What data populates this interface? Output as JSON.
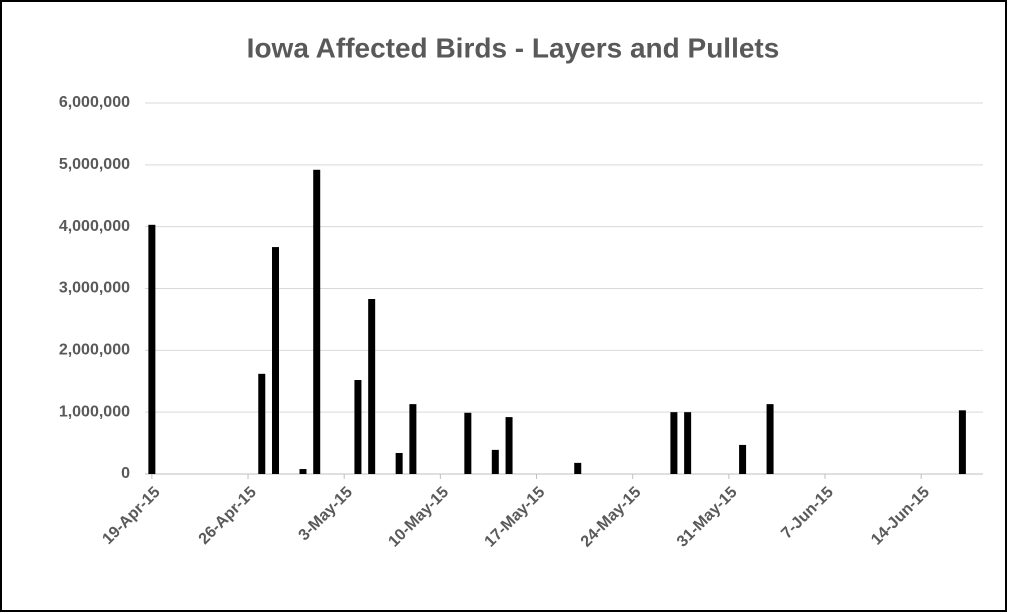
{
  "chart_data": {
    "type": "bar",
    "title": "Iowa Affected Birds - Layers and Pullets",
    "x": [
      "2015-04-19",
      "2015-04-27",
      "2015-04-28",
      "2015-04-30",
      "2015-05-01",
      "2015-05-04",
      "2015-05-05",
      "2015-05-07",
      "2015-05-08",
      "2015-05-12",
      "2015-05-14",
      "2015-05-15",
      "2015-05-20",
      "2015-05-27",
      "2015-05-28",
      "2015-06-01",
      "2015-06-03",
      "2015-06-17"
    ],
    "values": [
      4030000,
      1620000,
      3670000,
      80000,
      4920000,
      1520000,
      2830000,
      340000,
      1130000,
      990000,
      390000,
      920000,
      180000,
      1000000,
      1000000,
      470000,
      1130000,
      1030000
    ],
    "color": "#000000",
    "xlim": [
      "2015-04-19",
      "2015-06-18"
    ],
    "xticks": [
      {
        "value": "2015-04-19",
        "label": "19-Apr-15"
      },
      {
        "value": "2015-04-26",
        "label": "26-Apr-15"
      },
      {
        "value": "2015-05-03",
        "label": "3-May-15"
      },
      {
        "value": "2015-05-10",
        "label": "10-May-15"
      },
      {
        "value": "2015-05-17",
        "label": "17-May-15"
      },
      {
        "value": "2015-05-24",
        "label": "24-May-15"
      },
      {
        "value": "2015-05-31",
        "label": "31-May-15"
      },
      {
        "value": "2015-06-07",
        "label": "7-Jun-15"
      },
      {
        "value": "2015-06-14",
        "label": "14-Jun-15"
      }
    ],
    "ylim": [
      0,
      6000000
    ],
    "yticks": [
      0,
      {
        "value": 1000000,
        "label": "1,000,000"
      },
      {
        "value": 2000000,
        "label": "2,000,000"
      },
      {
        "value": 3000000,
        "label": "3,000,000"
      },
      {
        "value": 4000000,
        "label": "4,000,000"
      },
      {
        "value": 5000000,
        "label": "5,000,000"
      },
      {
        "value": 6000000,
        "label": "6,000,000"
      }
    ],
    "grid": true
  }
}
